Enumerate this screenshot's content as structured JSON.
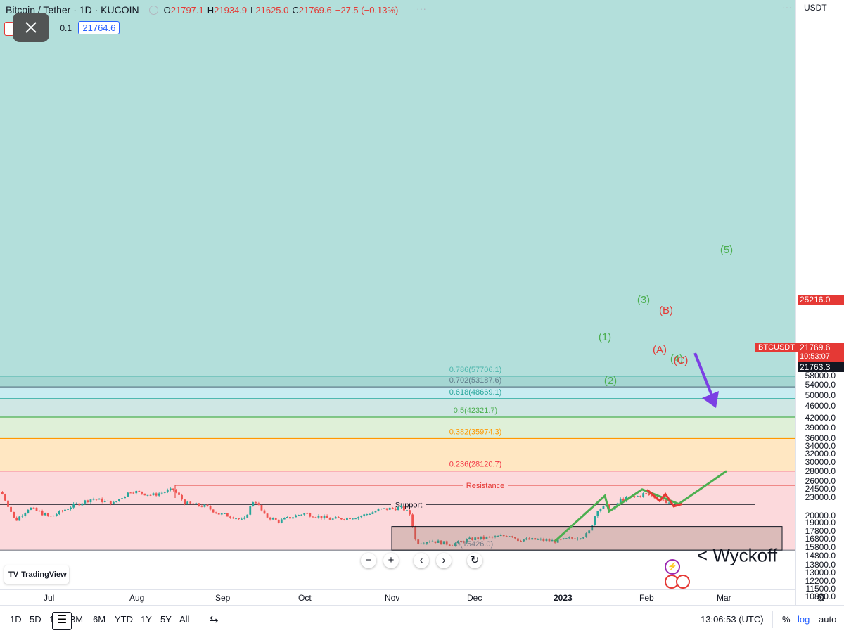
{
  "header": {
    "symbol": "Bitcoin / Tether · 1D · KUCOIN",
    "ohlc": [
      {
        "k": "O",
        "v": "21797.1"
      },
      {
        "k": "H",
        "v": "21934.9"
      },
      {
        "k": "L",
        "v": "21625.0"
      },
      {
        "k": "C",
        "v": "21769.6"
      },
      {
        "k": "",
        "v": "−27.5 (−0.13%)"
      }
    ],
    "qty_step": "0.1",
    "quote_value": "21764.6",
    "ellipsis": "···"
  },
  "price_axis": {
    "currency": "USDT",
    "labels": [
      "58000.0",
      "54000.0",
      "50000.0",
      "46000.0",
      "42000.0",
      "39000.0",
      "36000.0",
      "34000.0",
      "32000.0",
      "30000.0",
      "28000.0",
      "26000.0",
      "24500.0",
      "23000.0",
      "20000.0",
      "19000.0",
      "17800.0",
      "16800.0",
      "15800.0",
      "14800.0",
      "13800.0",
      "13000.0",
      "12200.0",
      "11500.0",
      "10860.0"
    ],
    "scale": "log"
  },
  "tags": {
    "resistance_price": "25216.0",
    "symbol_tag": "BTCUSDT",
    "last_price": "21769.6",
    "countdown": "10:53:07",
    "crosshair_price": "21763.3"
  },
  "time_axis": [
    "Jul",
    "Aug",
    "Sep",
    "Oct",
    "Nov",
    "Dec",
    "2023",
    "Feb",
    "Mar"
  ],
  "fib_levels": [
    {
      "ratio": "0.786",
      "price": 57706.1,
      "label": "0.786(57706.1)",
      "color": "#4db6ac"
    },
    {
      "ratio": "0.702",
      "price": 53187.6,
      "label": "0.702(53187.6)",
      "color": "#607d8b"
    },
    {
      "ratio": "0.618",
      "price": 48669.1,
      "label": "0.618(48669.1)",
      "color": "#26a69a"
    },
    {
      "ratio": "0.5",
      "price": 42321.7,
      "label": "0.5(42321.7)",
      "color": "#4caf50"
    },
    {
      "ratio": "0.382",
      "price": 35974.3,
      "label": "0.382(35974.3)",
      "color": "#ff9800"
    },
    {
      "ratio": "0.236",
      "price": 28120.7,
      "label": "0.236(28120.7)",
      "color": "#f23645"
    },
    {
      "ratio": "0",
      "price": 15426.0,
      "label": "0(15426.0)",
      "color": "#787b86"
    }
  ],
  "annotations": {
    "resistance": "Resistance",
    "support": "Support",
    "wyckoff": "< Wyckoff",
    "waves": [
      "(1)",
      "(2)",
      "(3)",
      "(4)",
      "(5)"
    ],
    "corrective": [
      "(A)",
      "(B)",
      "(C)"
    ]
  },
  "colors": {
    "up": "#26a69a",
    "down": "#ef5350",
    "impulse": "#4caf50",
    "correction": "#e53935",
    "arrow": "#7b3fe4"
  },
  "bottom_bar": {
    "ranges": [
      "1D",
      "5D",
      "1M",
      "3M",
      "6M",
      "YTD",
      "1Y",
      "5Y",
      "All"
    ],
    "time": "13:06:53 (UTC)",
    "percent": "%",
    "log": "log",
    "auto": "auto"
  },
  "logo_text": "TradingView"
}
